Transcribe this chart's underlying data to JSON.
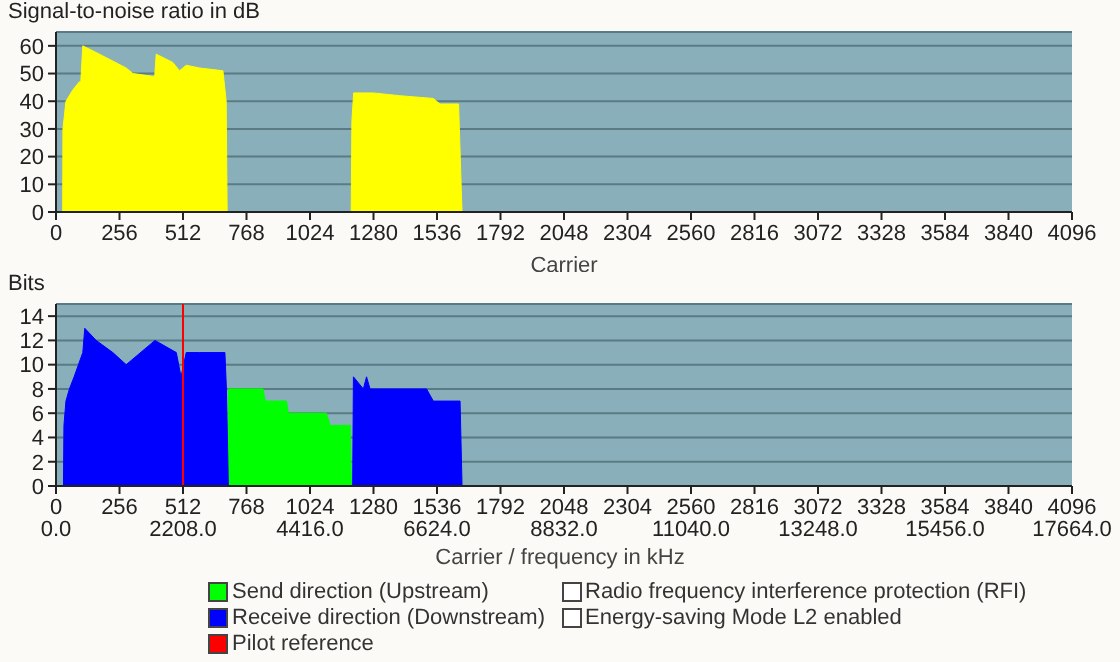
{
  "chart_data": [
    {
      "type": "area",
      "ylabel": "Signal-to-noise ratio in dB",
      "xlabel": "Carrier",
      "color": "#ffff00",
      "x": [
        0,
        27,
        28,
        40,
        67,
        94,
        100,
        108,
        175,
        283,
        310,
        390,
        398,
        404,
        471,
        498,
        525,
        579,
        673,
        686,
        690,
        1190,
        1193,
        1200,
        1279,
        1386,
        1521,
        1548,
        1623,
        1635,
        1637,
        4096
      ],
      "values": [
        0,
        0,
        30,
        40,
        44,
        47,
        47,
        60,
        57,
        52,
        50,
        49,
        49,
        57,
        54,
        51,
        53,
        52,
        51,
        40,
        0,
        0,
        33,
        43,
        43,
        42,
        41,
        39,
        39,
        5,
        0,
        0
      ],
      "xlim": [
        0,
        4096
      ],
      "xticks": [
        0,
        256,
        512,
        768,
        1024,
        1280,
        1536,
        1792,
        2048,
        2304,
        2560,
        2816,
        3072,
        3328,
        3584,
        3840,
        4096
      ],
      "ylim": [
        0,
        65
      ],
      "yticks": [
        0,
        10,
        20,
        30,
        40,
        50,
        60
      ],
      "grid": "y"
    },
    {
      "type": "area",
      "ylabel": "Bits",
      "xlabel": "Carrier / frequency in kHz",
      "series": [
        {
          "name": "Send direction (Upstream)",
          "color": "#00ff00",
          "x": [
            690,
            695,
            835,
            843,
            929,
            937,
            1090,
            1105,
            1186,
            1191
          ],
          "values": [
            0,
            8,
            8,
            7,
            7,
            6,
            6,
            5,
            5,
            0
          ]
        },
        {
          "name": "Receive direction (Downstream)",
          "color": "#0000ff",
          "x": [
            0,
            30,
            32,
            40,
            54,
            73,
            108,
            116,
            162,
            229,
            283,
            399,
            485,
            504,
            525,
            579,
            681,
            687,
            695,
            1196,
            1199,
            1239,
            1252,
            1266,
            1494,
            1521,
            1629,
            1637,
            4096
          ],
          "values": [
            0,
            0,
            5,
            7,
            8,
            9,
            11,
            13,
            12,
            11,
            10,
            12,
            11,
            9,
            11,
            11,
            11,
            8,
            0,
            0,
            9,
            8,
            9,
            8,
            8,
            7,
            7,
            0,
            0
          ]
        }
      ],
      "ref_lines": [
        {
          "axis": "x",
          "value": 512,
          "label": "Pilot reference",
          "color": "#ff0000"
        }
      ],
      "annotations": [
        "Radio frequency interference protection (RFI)",
        "Energy-saving Mode L2 enabled"
      ],
      "legend": "bottom",
      "xlim": [
        0,
        4096
      ],
      "xticks": [
        0,
        256,
        512,
        768,
        1024,
        1280,
        1536,
        1792,
        2048,
        2304,
        2560,
        2816,
        3072,
        3328,
        3584,
        3840,
        4096
      ],
      "x2lim": [
        0,
        17664
      ],
      "x2ticks": [
        {
          "value": 0,
          "label": "0.0"
        },
        {
          "value": 2208,
          "label": "2208.0"
        },
        {
          "value": 4416,
          "label": "4416.0"
        },
        {
          "value": 6624,
          "label": "6624.0"
        },
        {
          "value": 8832,
          "label": "8832.0"
        },
        {
          "value": 11040,
          "label": "11040.0"
        },
        {
          "value": 13248,
          "label": "13248.0"
        },
        {
          "value": 15456,
          "label": "15456.0"
        },
        {
          "value": 17664,
          "label": "17664.0"
        }
      ],
      "ylim": [
        0,
        15
      ],
      "yticks": [
        0,
        2,
        4,
        6,
        8,
        10,
        12,
        14
      ],
      "grid": "y"
    }
  ]
}
